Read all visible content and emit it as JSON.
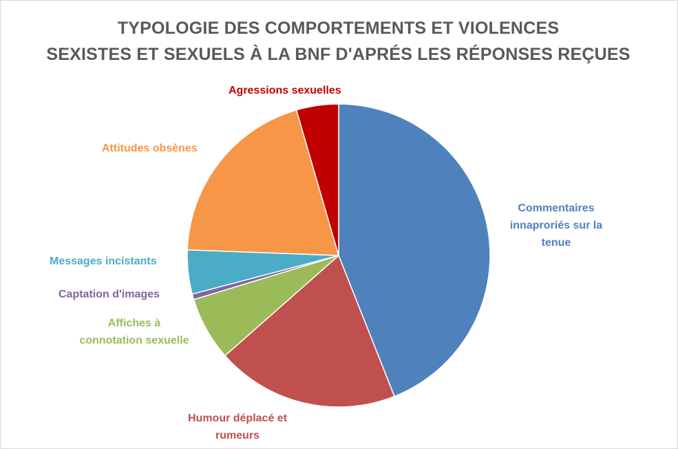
{
  "chart_data": {
    "type": "pie",
    "title": [
      "TYPOLOGIE DES COMPORTEMENTS ET VIOLENCES",
      "SEXISTES ET SEXUELS À LA BNF D'APRÉS LES RÉPONSES REÇUES"
    ],
    "start_angle_deg": 0,
    "direction": "clockwise",
    "legend": "none",
    "slices": [
      {
        "name": "Commentaires innaproriés sur la tenue",
        "label_lines": [
          "Commentaires",
          "innaproriés sur la",
          "tenue"
        ],
        "value": 44,
        "color": "#4F81BD"
      },
      {
        "name": "Humour déplacé et rumeurs",
        "label_lines": [
          "Humour déplacé et",
          "rumeurs"
        ],
        "value": 19.5,
        "color": "#C0504D"
      },
      {
        "name": "Affiches à connotation sexuelle",
        "label_lines": [
          "Affiches à",
          "connotation sexuelle"
        ],
        "value": 6.8,
        "color": "#9BBB59"
      },
      {
        "name": "Captation d'images",
        "label_lines": [
          "Captation d'images"
        ],
        "value": 0.6,
        "color": "#8064A2"
      },
      {
        "name": "Messages incistants",
        "label_lines": [
          "Messages incistants"
        ],
        "value": 4.7,
        "color": "#4BACC6"
      },
      {
        "name": "Attitudes obsènes",
        "label_lines": [
          "Attitudes obsènes"
        ],
        "value": 19.9,
        "color": "#F79646"
      },
      {
        "name": "Agressions sexuelles",
        "label_lines": [
          "Agressions sexuelles"
        ],
        "value": 4.5,
        "color": "#C00000"
      }
    ]
  }
}
